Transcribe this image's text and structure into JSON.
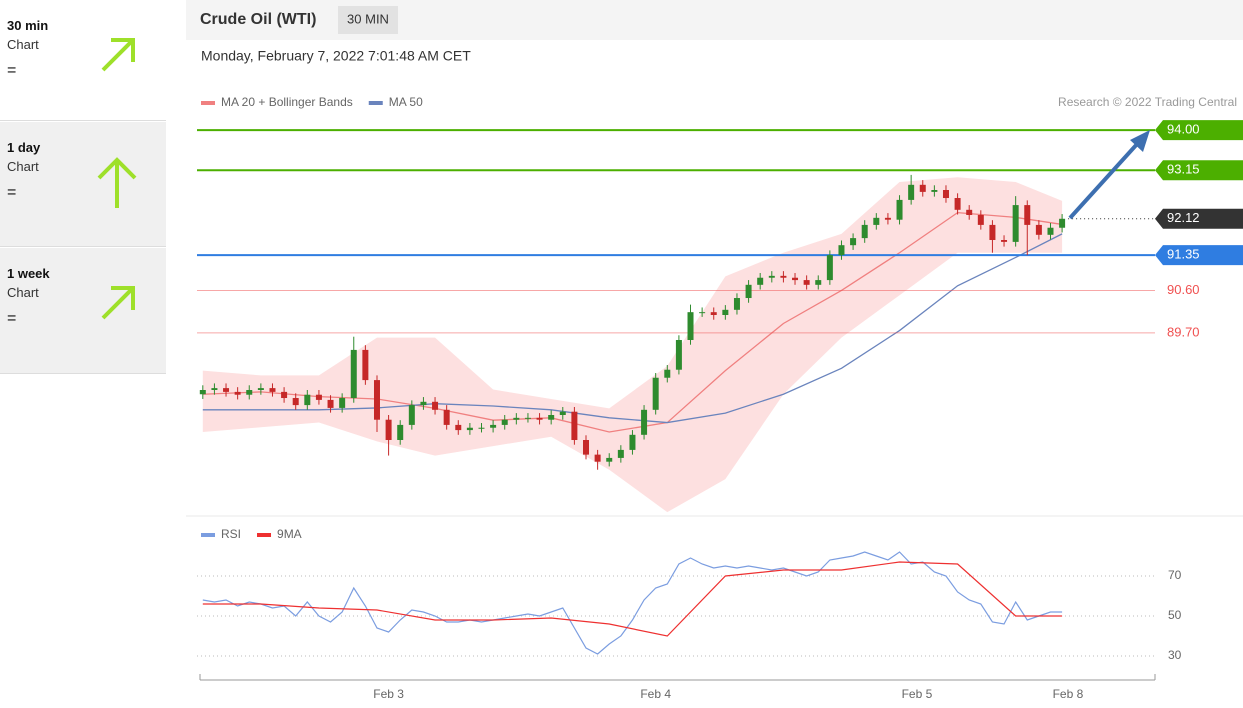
{
  "sidebar": [
    {
      "period": "30 min",
      "kind": "Chart",
      "signal": "="
    },
    {
      "period": "1 day",
      "kind": "Chart",
      "signal": "="
    },
    {
      "period": "1 week",
      "kind": "Chart",
      "signal": "="
    }
  ],
  "header": {
    "title": "Crude Oil (WTI)",
    "interval": "30 MIN",
    "timestamp": "Monday, February 7, 2022 7:01:48 AM CET",
    "credit": "Research © 2022 Trading Central"
  },
  "chart_data": [
    {
      "type": "candlestick",
      "xlim": [
        -0.5,
        82
      ],
      "ylim": [
        85.84,
        94.32
      ],
      "xticks": [
        {
          "value": 16,
          "label": "Feb 3"
        },
        {
          "value": 39,
          "label": "Feb 4"
        },
        {
          "value": 61.5,
          "label": "Feb 5"
        },
        {
          "value": 74.5,
          "label": "Feb 8"
        }
      ],
      "candles": {
        "up_color": "#2e8b2e",
        "down_color": "#c62828",
        "open": [
          88.4,
          88.49,
          88.53,
          88.45,
          88.39,
          88.49,
          88.53,
          88.45,
          88.32,
          88.17,
          88.39,
          88.28,
          88.11,
          88.32,
          89.34,
          88.7,
          87.86,
          87.43,
          87.75,
          88.17,
          88.24,
          88.07,
          87.75,
          87.64,
          87.69,
          87.69,
          87.75,
          87.86,
          87.9,
          87.9,
          87.86,
          87.96,
          88.03,
          87.43,
          87.12,
          86.97,
          87.05,
          87.22,
          87.54,
          88.07,
          88.75,
          88.92,
          89.55,
          90.14,
          90.14,
          90.08,
          90.19,
          90.44,
          90.72,
          90.87,
          90.91,
          90.87,
          90.82,
          90.72,
          90.82,
          91.35,
          91.56,
          91.71,
          91.99,
          92.14,
          92.1,
          92.52,
          92.84,
          92.69,
          92.73,
          92.56,
          92.31,
          92.2,
          91.99,
          91.67,
          91.63,
          92.41,
          91.99,
          91.78,
          91.93
        ],
        "high": [
          88.59,
          88.63,
          88.63,
          88.55,
          88.59,
          88.63,
          88.63,
          88.55,
          88.42,
          88.49,
          88.49,
          88.38,
          88.42,
          89.62,
          89.44,
          88.8,
          87.96,
          87.85,
          88.27,
          88.34,
          88.34,
          88.17,
          87.85,
          87.79,
          87.79,
          87.85,
          87.96,
          88.0,
          88.0,
          88.0,
          88.06,
          88.13,
          88.13,
          87.53,
          87.22,
          87.15,
          87.32,
          87.64,
          88.17,
          88.85,
          89.02,
          89.65,
          90.3,
          90.24,
          90.24,
          90.29,
          90.54,
          90.82,
          90.97,
          91.01,
          91.01,
          90.97,
          90.92,
          90.92,
          91.45,
          91.66,
          91.81,
          92.09,
          92.24,
          92.24,
          92.62,
          93.05,
          92.94,
          92.83,
          92.83,
          92.66,
          92.41,
          92.3,
          92.09,
          91.77,
          92.6,
          92.51,
          92.09,
          92.03,
          92.22
        ],
        "low": [
          88.3,
          88.39,
          88.35,
          88.29,
          88.29,
          88.39,
          88.35,
          88.22,
          88.07,
          88.07,
          88.18,
          88.01,
          88.01,
          88.22,
          88.6,
          87.6,
          87.1,
          87.33,
          87.65,
          88.07,
          87.97,
          87.65,
          87.54,
          87.54,
          87.59,
          87.59,
          87.65,
          87.76,
          87.8,
          87.76,
          87.76,
          87.86,
          87.33,
          87.02,
          86.8,
          86.87,
          86.95,
          87.12,
          87.44,
          87.97,
          88.65,
          88.82,
          89.45,
          90.04,
          89.98,
          89.98,
          90.09,
          90.34,
          90.62,
          90.77,
          90.77,
          90.72,
          90.62,
          90.62,
          90.72,
          91.25,
          91.46,
          91.61,
          91.89,
          92.0,
          92.0,
          92.42,
          92.59,
          92.59,
          92.46,
          92.21,
          92.1,
          91.89,
          91.4,
          91.53,
          91.53,
          91.35,
          91.68,
          91.68,
          91.83
        ],
        "close": [
          88.49,
          88.53,
          88.45,
          88.39,
          88.49,
          88.53,
          88.45,
          88.32,
          88.17,
          88.39,
          88.28,
          88.11,
          88.32,
          89.34,
          88.7,
          87.86,
          87.43,
          87.75,
          88.17,
          88.24,
          88.07,
          87.75,
          87.64,
          87.69,
          87.69,
          87.75,
          87.86,
          87.9,
          87.9,
          87.86,
          87.96,
          88.03,
          87.43,
          87.12,
          86.97,
          87.05,
          87.22,
          87.54,
          88.07,
          88.75,
          88.92,
          89.55,
          90.14,
          90.14,
          90.08,
          90.19,
          90.44,
          90.72,
          90.87,
          90.91,
          90.87,
          90.82,
          90.72,
          90.82,
          91.35,
          91.56,
          91.71,
          91.99,
          92.14,
          92.1,
          92.52,
          92.84,
          92.69,
          92.73,
          92.56,
          92.31,
          92.2,
          91.99,
          91.67,
          91.63,
          92.41,
          91.99,
          91.78,
          91.93,
          92.12
        ]
      },
      "series": [
        {
          "name": "MA 20 + Bollinger Bands",
          "color": "#f08080",
          "band_color": "#fde0e0",
          "x": [
            0,
            5,
            10,
            15,
            20,
            25,
            30,
            35,
            40,
            45,
            50,
            55,
            60,
            65,
            70,
            74
          ],
          "values": [
            88.4,
            88.45,
            88.35,
            88.3,
            88.1,
            87.85,
            87.9,
            87.6,
            87.8,
            88.9,
            89.9,
            90.6,
            91.4,
            92.25,
            92.15,
            92.0
          ],
          "upper": [
            88.9,
            88.8,
            88.8,
            89.6,
            89.6,
            88.5,
            88.3,
            88.1,
            89.0,
            90.9,
            91.4,
            91.8,
            92.9,
            93.0,
            92.9,
            92.5
          ],
          "lower": [
            87.6,
            87.7,
            87.8,
            87.4,
            87.1,
            87.3,
            87.5,
            86.8,
            85.9,
            86.6,
            88.4,
            89.6,
            90.5,
            91.4,
            91.4,
            91.4
          ]
        },
        {
          "name": "MA 50",
          "color": "#6a84bd",
          "x": [
            0,
            5,
            10,
            15,
            20,
            25,
            30,
            35,
            40,
            45,
            50,
            55,
            60,
            65,
            70,
            74
          ],
          "values": [
            88.07,
            88.07,
            88.07,
            88.11,
            88.2,
            88.15,
            88.07,
            87.9,
            87.8,
            88.0,
            88.4,
            88.95,
            89.75,
            90.7,
            91.3,
            91.8
          ]
        }
      ],
      "levels": [
        {
          "value": 94,
          "label": "94.00",
          "color": "#4caf00",
          "boxed": true
        },
        {
          "value": 93.15,
          "color": "#4caf00",
          "boxed": true
        },
        {
          "value": 92.12,
          "color": "#333333",
          "boxed": true,
          "dotted": true
        },
        {
          "value": 91.35,
          "color": "#2f7de1",
          "boxed": true
        },
        {
          "value": 90.6,
          "label": "90.60",
          "color": "#f05050",
          "boxed": false
        },
        {
          "value": 89.7,
          "label": "89.70",
          "color": "#f05050",
          "boxed": false
        }
      ]
    },
    {
      "type": "line",
      "ylim": [
        18,
        88
      ],
      "yticks": [
        30,
        50,
        70
      ],
      "grid": true,
      "series": [
        {
          "name": "RSI",
          "color": "#7b9de0",
          "values": [
            58,
            57,
            58,
            55,
            57,
            56,
            54,
            55,
            50,
            57,
            50,
            47,
            52,
            64,
            55,
            44,
            42,
            48,
            53,
            52,
            50,
            47,
            47,
            48,
            47,
            48,
            49,
            50,
            51,
            50,
            52,
            54,
            44,
            34,
            31,
            36,
            40,
            48,
            58,
            64,
            66,
            76,
            79,
            76,
            74,
            75,
            74,
            75,
            74,
            73,
            74,
            72,
            70,
            72,
            78,
            79,
            80,
            82,
            80,
            78,
            82,
            76,
            77,
            72,
            70,
            62,
            58,
            56,
            47,
            46,
            57,
            48,
            50,
            52,
            52
          ]
        },
        {
          "name": "9MA",
          "color": "#ee3030",
          "x": [
            0,
            5,
            10,
            15,
            20,
            25,
            30,
            35,
            40,
            45,
            50,
            55,
            60,
            65,
            70,
            74
          ],
          "values": [
            56,
            56,
            54,
            53,
            48,
            48,
            49,
            46,
            40,
            70,
            73,
            73,
            77,
            76,
            50,
            50
          ]
        }
      ]
    }
  ]
}
